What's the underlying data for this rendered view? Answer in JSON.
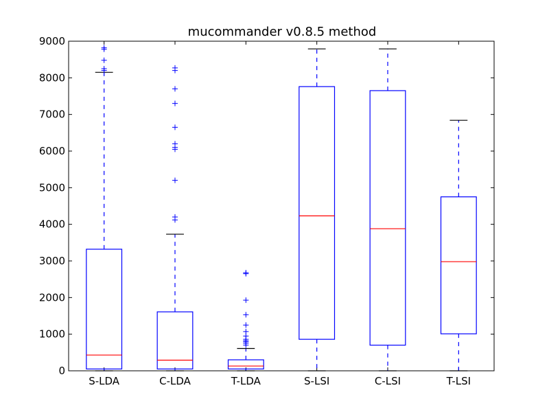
{
  "chart_data": {
    "type": "box",
    "title": "mucommander v0.8.5 method",
    "xlabel": "",
    "ylabel": "",
    "ylim": [
      0,
      9000
    ],
    "yticks": [
      0,
      1000,
      2000,
      3000,
      4000,
      5000,
      6000,
      7000,
      8000,
      9000
    ],
    "categories": [
      "S-LDA",
      "C-LDA",
      "T-LDA",
      "S-LSI",
      "C-LSI",
      "T-LSI"
    ],
    "grid": false,
    "colors": {
      "box": "#0000ff",
      "median": "#ff0000",
      "cap": "#000000",
      "outlier": "#0000ff"
    },
    "boxes": [
      {
        "label": "S-LDA",
        "whisker_low": 0,
        "q1": 50,
        "median": 430,
        "q3": 3320,
        "whisker_high": 8150,
        "outliers": [
          8200,
          8250,
          8480,
          8780,
          8820
        ]
      },
      {
        "label": "C-LDA",
        "whisker_low": 0,
        "q1": 50,
        "median": 290,
        "q3": 1610,
        "whisker_high": 3730,
        "outliers": [
          4120,
          4200,
          5200,
          6050,
          6100,
          6200,
          6650,
          7300,
          7700,
          8200,
          8270
        ]
      },
      {
        "label": "T-LDA",
        "whisker_low": 0,
        "q1": 50,
        "median": 130,
        "q3": 300,
        "whisker_high": 610,
        "outliers": [
          700,
          750,
          790,
          820,
          860,
          950,
          1070,
          1250,
          1530,
          1930,
          2650,
          2680
        ]
      },
      {
        "label": "S-LSI",
        "whisker_low": 0,
        "q1": 860,
        "median": 4230,
        "q3": 7760,
        "whisker_high": 8790,
        "outliers": []
      },
      {
        "label": "C-LSI",
        "whisker_low": 0,
        "q1": 700,
        "median": 3880,
        "q3": 7650,
        "whisker_high": 8790,
        "outliers": []
      },
      {
        "label": "T-LSI",
        "whisker_low": 0,
        "q1": 1010,
        "median": 2980,
        "q3": 4750,
        "whisker_high": 6840,
        "outliers": []
      }
    ]
  }
}
